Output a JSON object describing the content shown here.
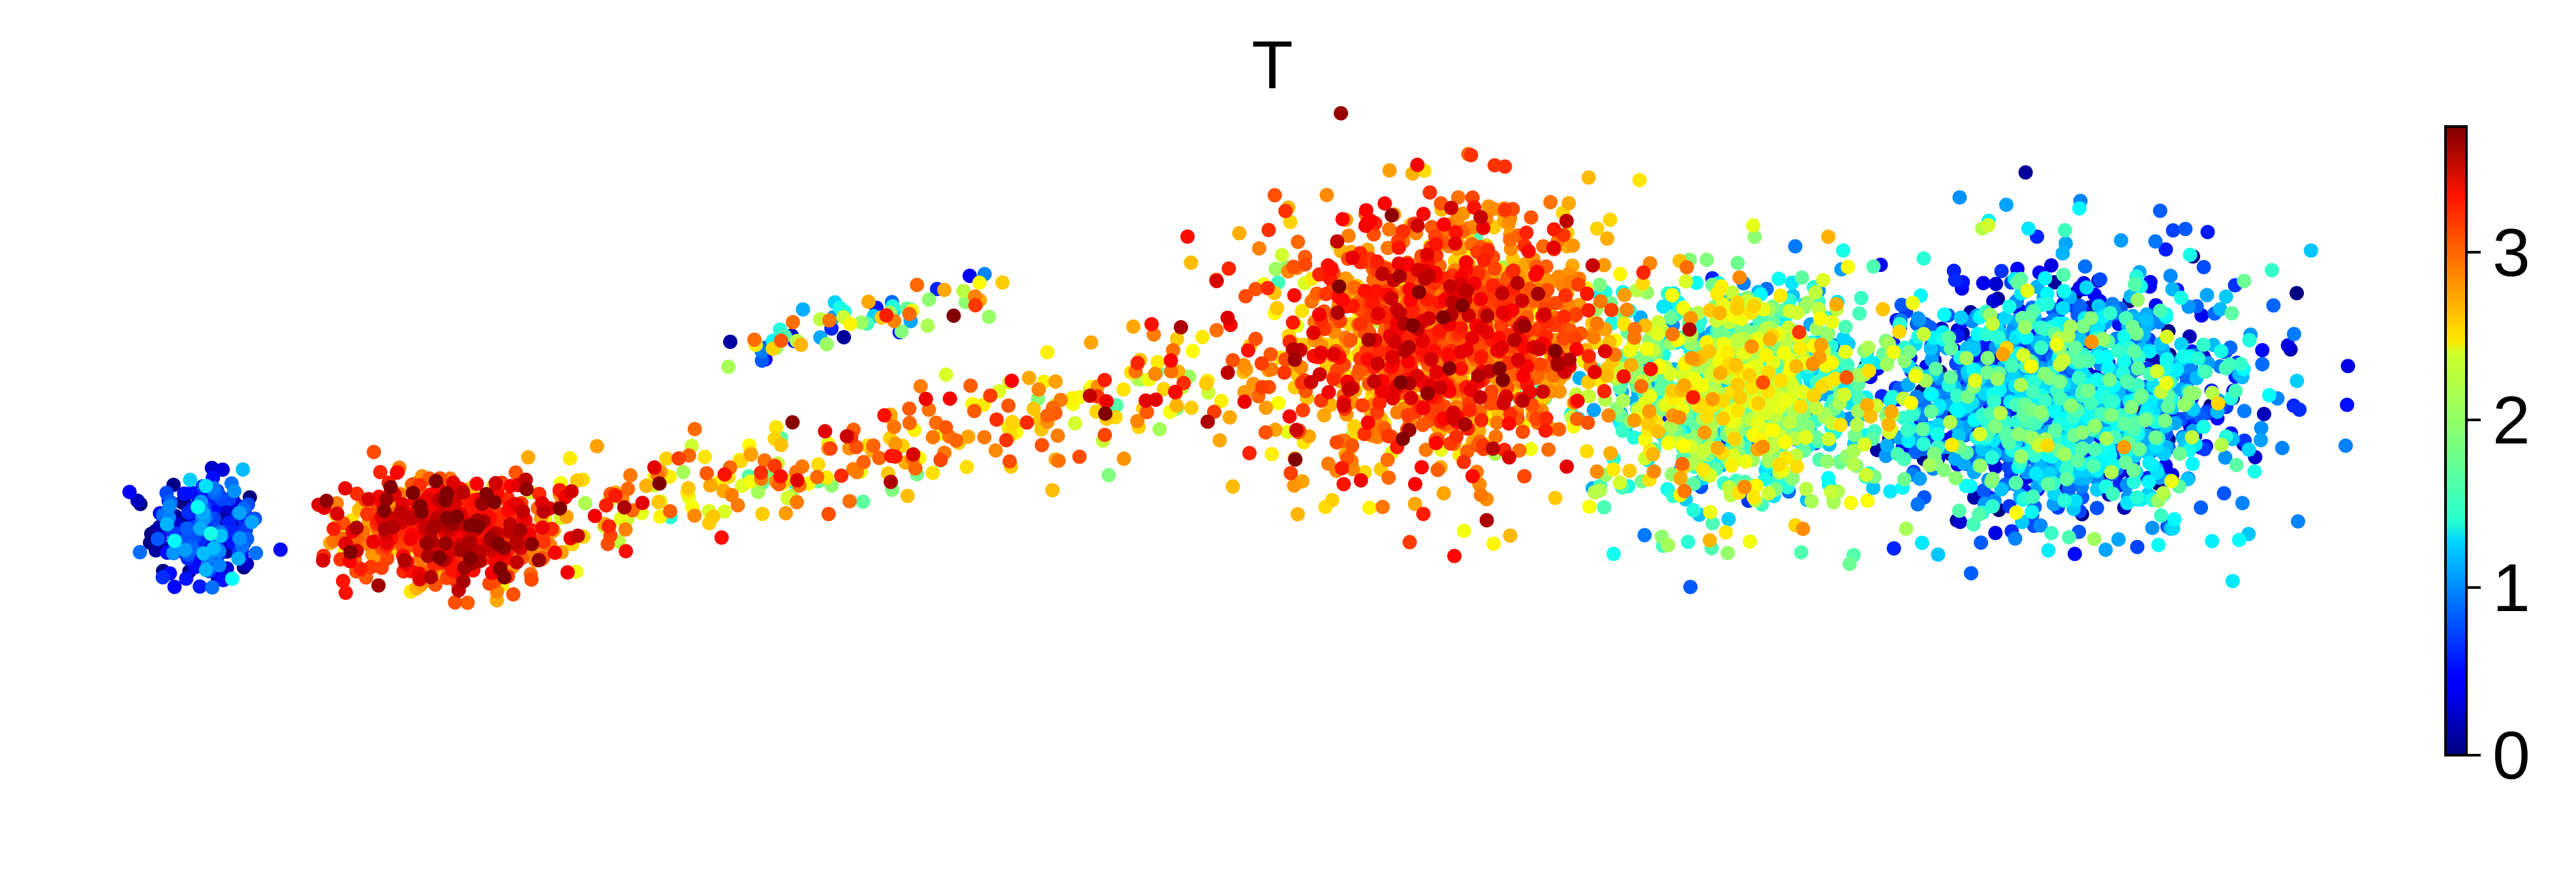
{
  "chart_data": {
    "type": "scatter",
    "title": "T",
    "xlabel": "",
    "ylabel": "",
    "axes_visible": false,
    "grid": false,
    "colormap": "jet",
    "colorbar": {
      "location": "right",
      "vmin": 0,
      "vmax": 3.75,
      "ticks": [
        0,
        1,
        2,
        3
      ],
      "tick_labels": [
        "0",
        "1",
        "2",
        "3"
      ]
    },
    "xlim": [
      -10,
      10
    ],
    "ylim": [
      -5,
      5
    ],
    "point_color": "expression value of T (mapped through jet colormap)",
    "regions": [
      {
        "name": "left-blob-low",
        "center": [
          -9.6,
          -0.92
        ],
        "spread": [
          0.45,
          0.75
        ],
        "value_mean": 0.35,
        "value_sd": 0.45,
        "count": 260
      },
      {
        "name": "left-blob-high",
        "center": [
          -7.3,
          -0.92
        ],
        "spread": [
          0.9,
          0.75
        ],
        "value_mean": 3.05,
        "value_sd": 0.35,
        "count": 700
      },
      {
        "name": "bridge",
        "start": [
          -6.2,
          -0.7
        ],
        "end": [
          -0.3,
          1.2
        ],
        "thickness": 0.35,
        "value_mean": 2.7,
        "value_sd": 0.45,
        "count": 280
      },
      {
        "name": "upper-arc",
        "start": [
          -4.8,
          1.6
        ],
        "end": [
          -2.3,
          2.6
        ],
        "thickness": 0.15,
        "value_mean": 1.8,
        "value_sd": 0.9,
        "count": 70
      },
      {
        "name": "right-mass-high",
        "center": [
          1.8,
          1.8
        ],
        "spread": [
          1.4,
          1.8
        ],
        "value_mean": 2.9,
        "value_sd": 0.35,
        "count": 1400
      },
      {
        "name": "right-mass-mid",
        "center": [
          4.6,
          1.1
        ],
        "spread": [
          1.2,
          1.6
        ],
        "value_mean": 1.8,
        "value_sd": 0.45,
        "count": 1100
      },
      {
        "name": "right-mass-low",
        "center": [
          7.6,
          1.0
        ],
        "spread": [
          1.5,
          1.7
        ],
        "value_mean": 1.0,
        "value_sd": 0.55,
        "count": 1500
      }
    ]
  }
}
